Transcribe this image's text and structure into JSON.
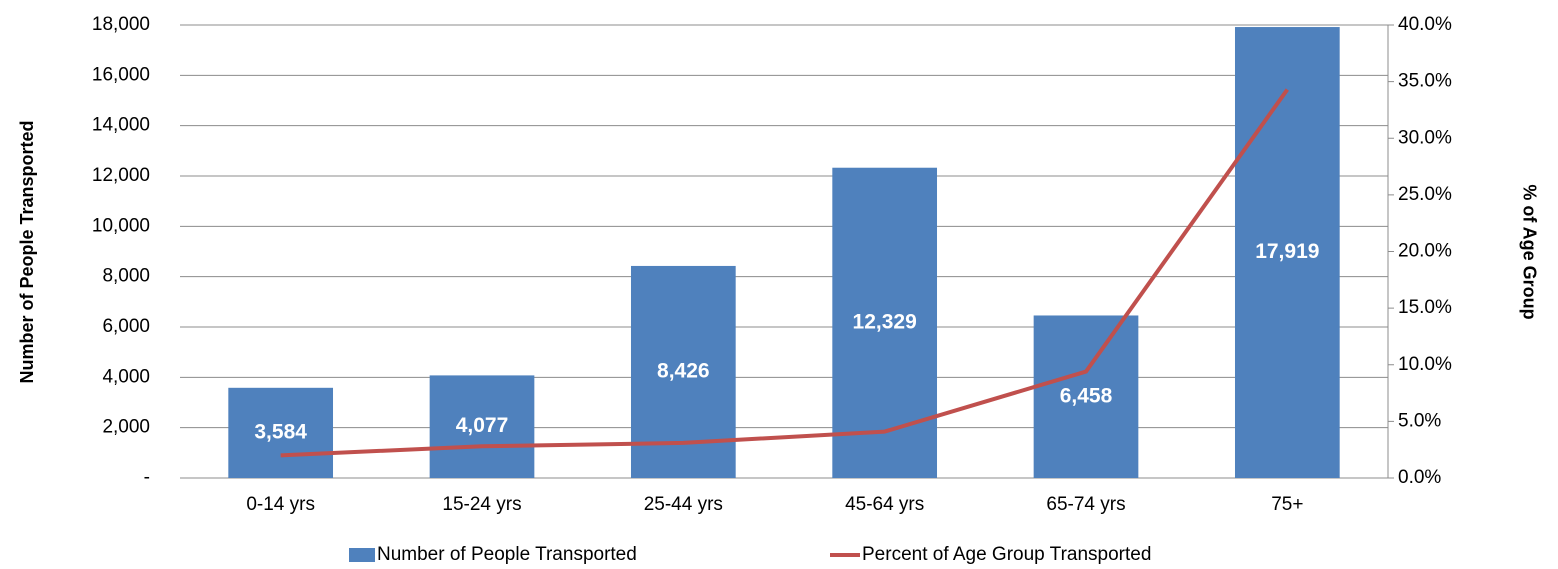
{
  "chart_data": {
    "type": "bar_line",
    "categories": [
      "0-14 yrs",
      "15-24 yrs",
      "25-44 yrs",
      "45-64 yrs",
      "65-74 yrs",
      "75+"
    ],
    "ylabel": "Number of People Transported",
    "y2label": "% of Age Group",
    "ylim": [
      0,
      18000
    ],
    "yticks": [
      {
        "value": 0,
        "label": "-"
      },
      {
        "value": 2000,
        "label": "2,000"
      },
      {
        "value": 4000,
        "label": "4,000"
      },
      {
        "value": 6000,
        "label": "6,000"
      },
      {
        "value": 8000,
        "label": "8,000"
      },
      {
        "value": 10000,
        "label": "10,000"
      },
      {
        "value": 12000,
        "label": "12,000"
      },
      {
        "value": 14000,
        "label": "14,000"
      },
      {
        "value": 16000,
        "label": "16,000"
      },
      {
        "value": 18000,
        "label": "18,000"
      }
    ],
    "y2lim": [
      0,
      40
    ],
    "y2ticks": [
      {
        "value": 0,
        "label": "0.0%"
      },
      {
        "value": 5,
        "label": "5.0%"
      },
      {
        "value": 10,
        "label": "10.0%"
      },
      {
        "value": 15,
        "label": "15.0%"
      },
      {
        "value": 20,
        "label": "20.0%"
      },
      {
        "value": 25,
        "label": "25.0%"
      },
      {
        "value": 30,
        "label": "30.0%"
      },
      {
        "value": 35,
        "label": "35.0%"
      },
      {
        "value": 40,
        "label": "40.0%"
      }
    ],
    "grid": true,
    "legend": "bottom",
    "series": [
      {
        "name": "Number of People Transported",
        "type": "bar",
        "color": "#4f81bd",
        "values": [
          3584,
          4077,
          8426,
          12329,
          6458,
          17919
        ],
        "value_labels": [
          "3,584",
          "4,077",
          "8,426",
          "12,329",
          "6,458",
          "17,919"
        ]
      },
      {
        "name": "Percent of Age Group Transported",
        "type": "line",
        "axis": "y2",
        "color": "#c0504d",
        "values": [
          2.0,
          2.8,
          3.1,
          4.1,
          9.4,
          34.3
        ]
      }
    ]
  }
}
